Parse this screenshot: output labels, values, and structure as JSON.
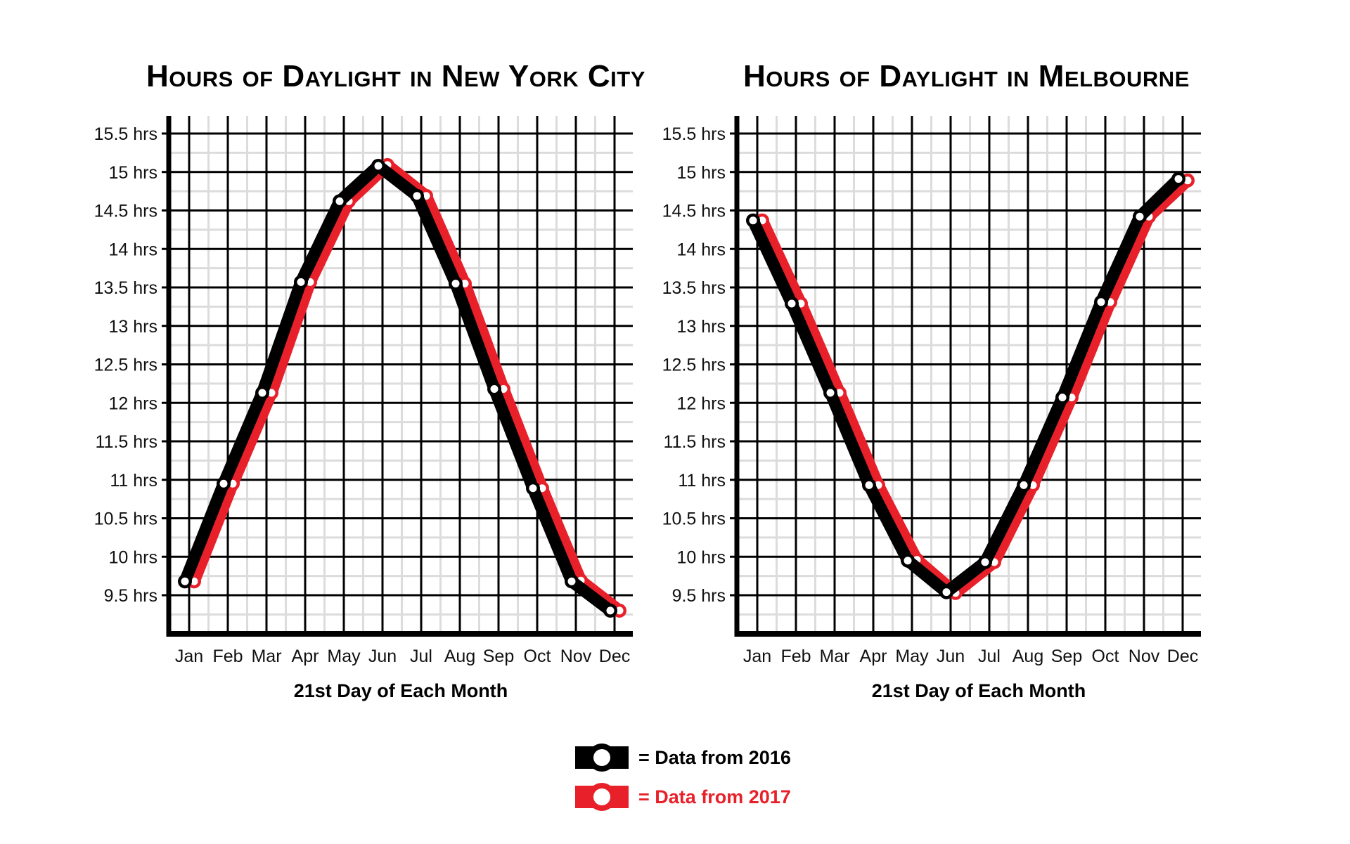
{
  "colors": {
    "series_2016": "#000000",
    "series_2017": "#e8202a",
    "grid_major": "#000000",
    "grid_minor": "#dcdcdc",
    "background": "#ffffff"
  },
  "legend": {
    "items": [
      {
        "label": "= Data from 2016",
        "color": "#000000"
      },
      {
        "label": "= Data from 2017",
        "color": "#e8202a"
      }
    ]
  },
  "chart_data": [
    {
      "type": "line",
      "title": "Hours of Daylight in New York City",
      "xlabel": "21st Day of Each Month",
      "ylabel": "",
      "categories": [
        "Jan",
        "Feb",
        "Mar",
        "Apr",
        "May",
        "Jun",
        "Jul",
        "Aug",
        "Sep",
        "Oct",
        "Nov",
        "Dec"
      ],
      "yticks": [
        9.5,
        10,
        10.5,
        11,
        11.5,
        12,
        12.5,
        13,
        13.5,
        14,
        14.5,
        15,
        15.5
      ],
      "ytick_labels": [
        "9.5 hrs",
        "10 hrs",
        "10.5 hrs",
        "11 hrs",
        "11.5 hrs",
        "12 hrs",
        "12.5 hrs",
        "13 hrs",
        "13.5 hrs",
        "14 hrs",
        "14.5 hrs",
        "15 hrs",
        "15.5 hrs"
      ],
      "ylim": [
        9.0,
        15.75
      ],
      "grid": true,
      "legend_position": "bottom-center",
      "series": [
        {
          "name": "Data from 2016",
          "color": "#000000",
          "values": [
            9.68,
            10.95,
            12.13,
            13.57,
            14.62,
            15.08,
            14.69,
            13.55,
            12.18,
            10.89,
            9.68,
            9.3
          ]
        },
        {
          "name": "Data from 2017",
          "color": "#e8202a",
          "values": [
            9.68,
            10.95,
            12.13,
            13.57,
            14.62,
            15.09,
            14.69,
            13.55,
            12.18,
            10.89,
            9.69,
            9.3
          ]
        }
      ]
    },
    {
      "type": "line",
      "title": "Hours of Daylight in Melbourne",
      "xlabel": "21st Day of Each Month",
      "ylabel": "",
      "categories": [
        "Jan",
        "Feb",
        "Mar",
        "Apr",
        "May",
        "Jun",
        "Jul",
        "Aug",
        "Sep",
        "Oct",
        "Nov",
        "Dec"
      ],
      "yticks": [
        9.5,
        10,
        10.5,
        11,
        11.5,
        12,
        12.5,
        13,
        13.5,
        14,
        14.5,
        15,
        15.5
      ],
      "ytick_labels": [
        "9.5 hrs",
        "10 hrs",
        "10.5 hrs",
        "11 hrs",
        "11.5 hrs",
        "12 hrs",
        "12.5 hrs",
        "13 hrs",
        "13.5 hrs",
        "14 hrs",
        "14.5 hrs",
        "15 hrs",
        "15.5 hrs"
      ],
      "ylim": [
        9.0,
        15.75
      ],
      "grid": true,
      "legend_position": "bottom-center",
      "series": [
        {
          "name": "Data from 2016",
          "color": "#000000",
          "values": [
            14.37,
            13.29,
            12.13,
            10.93,
            9.95,
            9.54,
            9.93,
            10.93,
            12.07,
            13.31,
            14.42,
            14.91
          ]
        },
        {
          "name": "Data from 2017",
          "color": "#e8202a",
          "values": [
            14.37,
            13.29,
            12.13,
            10.93,
            9.96,
            9.53,
            9.93,
            10.93,
            12.07,
            13.31,
            14.42,
            14.89
          ]
        }
      ]
    }
  ]
}
